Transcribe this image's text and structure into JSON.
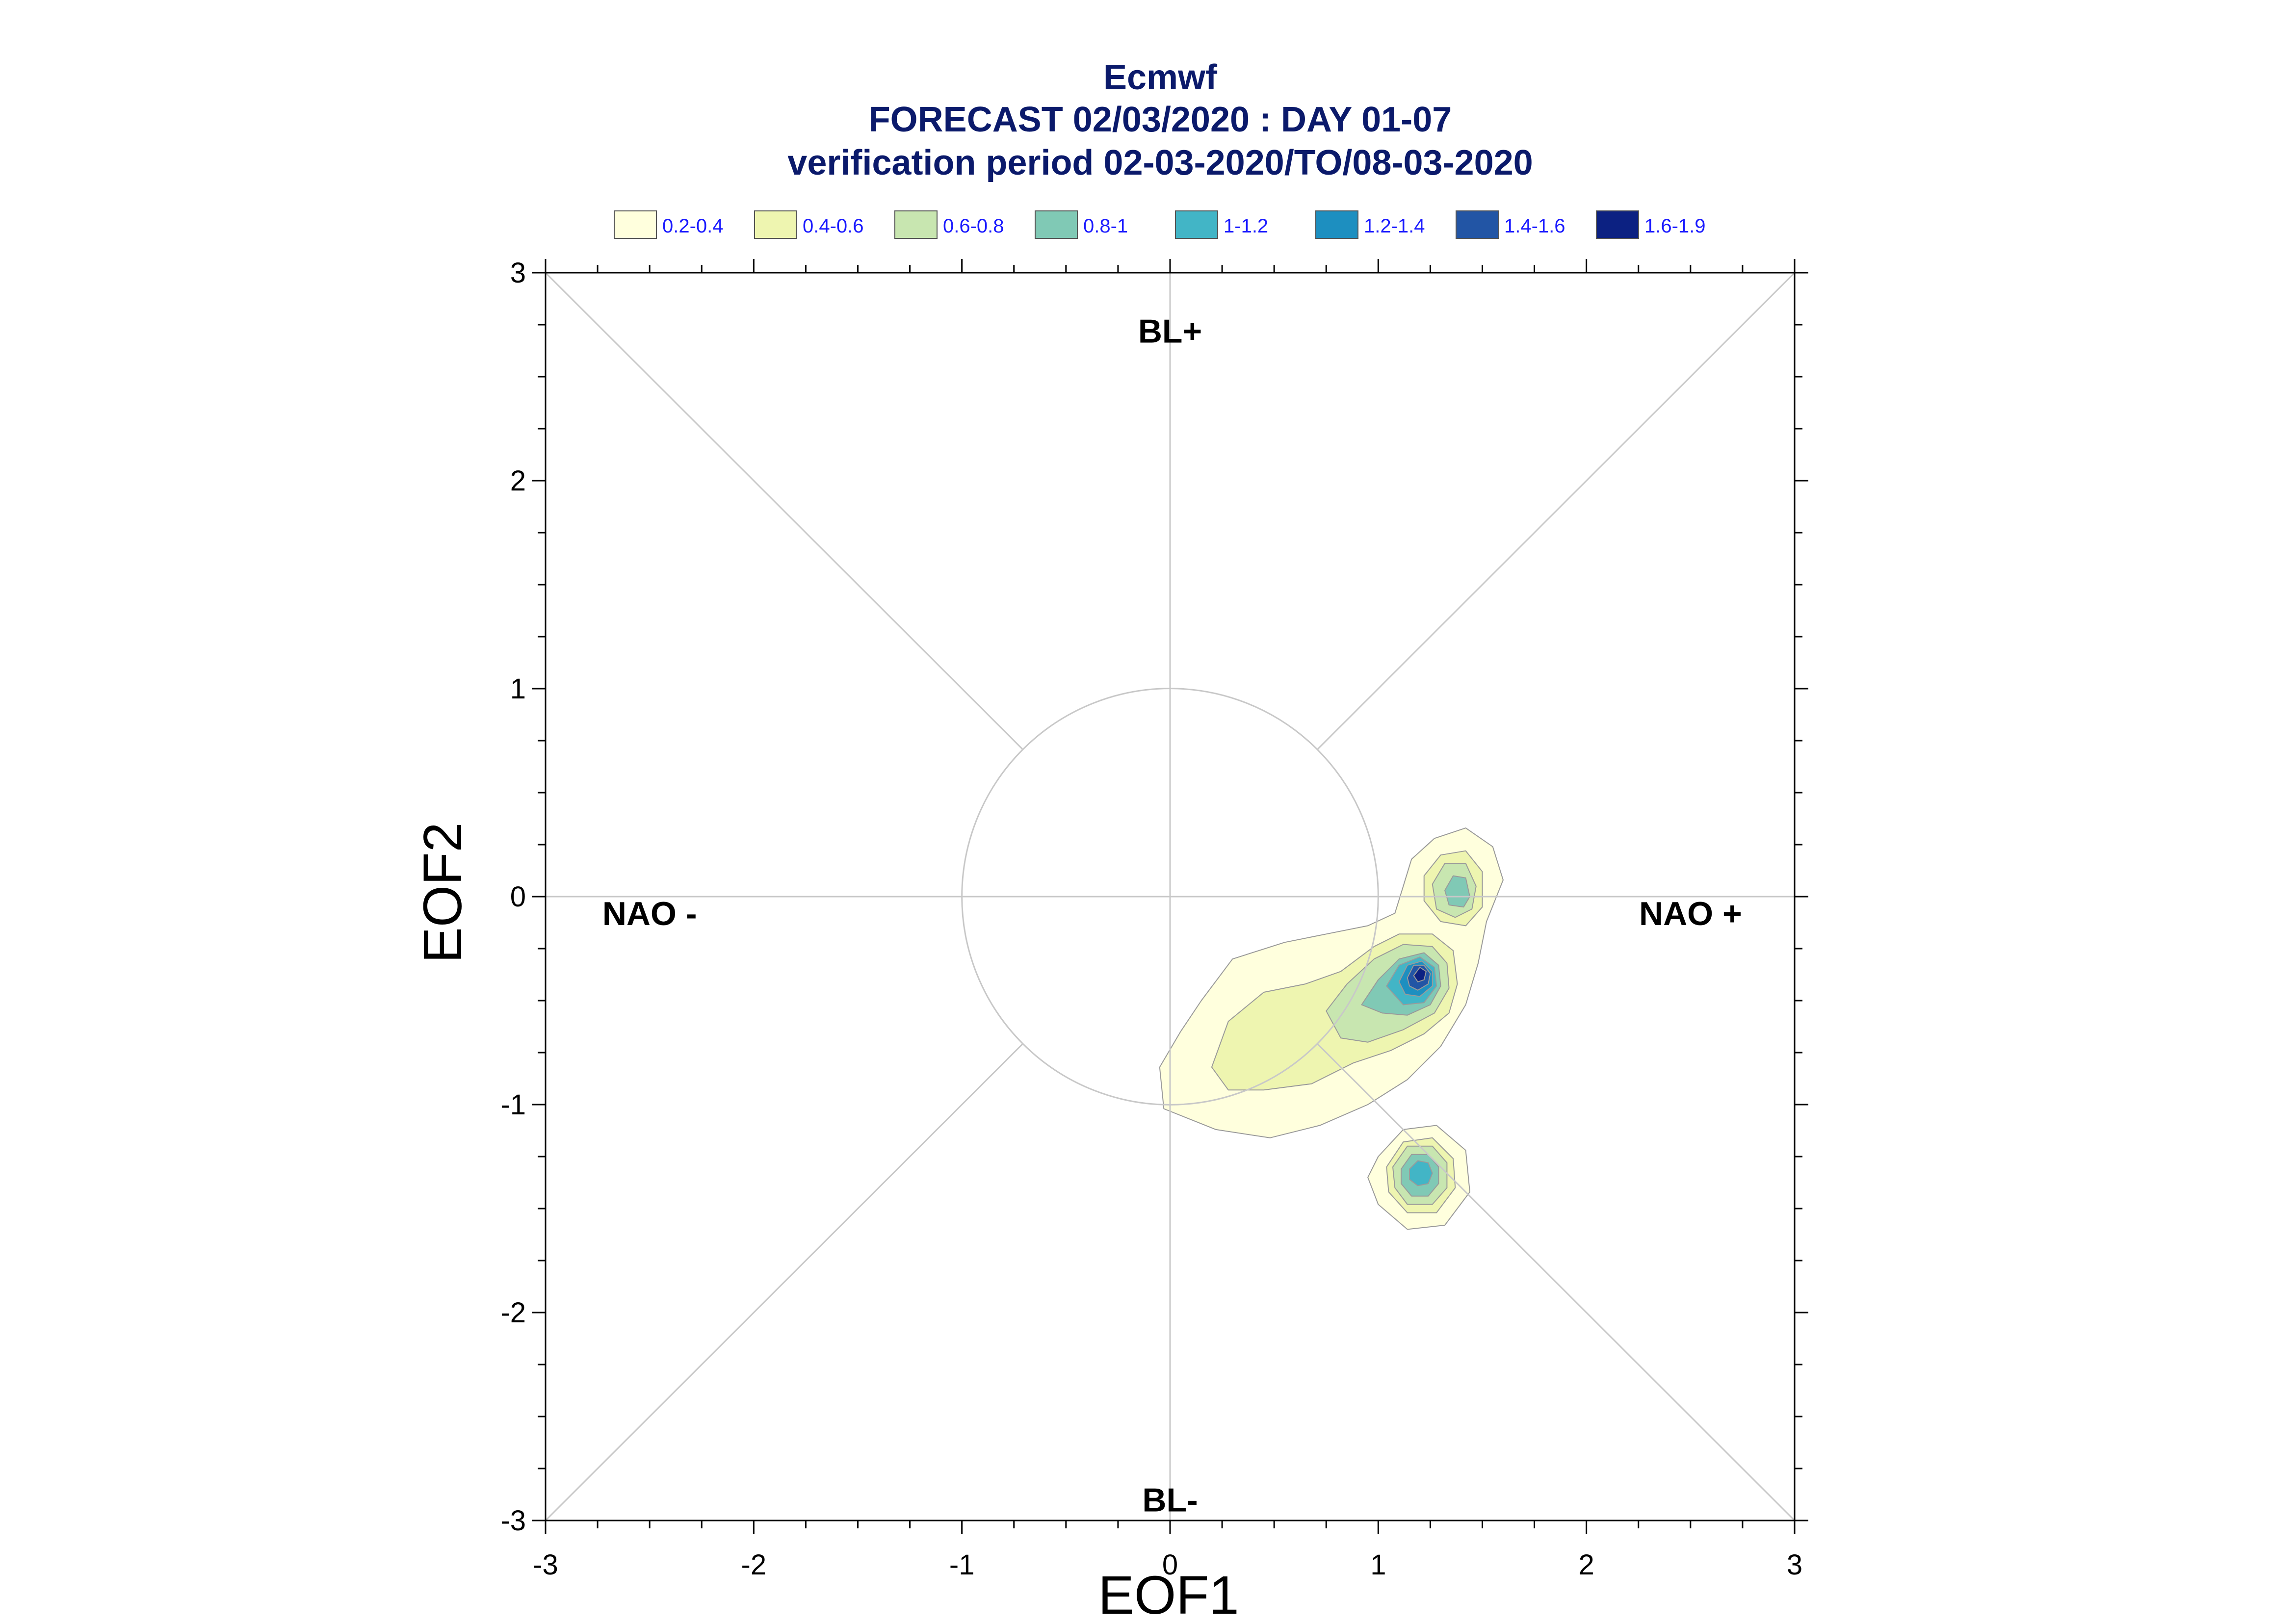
{
  "chart_data": {
    "type": "contour",
    "title_lines": [
      "Ecmwf",
      "FORECAST 02/03/2020 : DAY 01-07",
      "verification period 02-03-2020/TO/08-03-2020"
    ],
    "xlabel": "EOF1",
    "ylabel": "EOF2",
    "xlim": [
      -3,
      3
    ],
    "ylim": [
      -3,
      3
    ],
    "x_ticks": [
      -3,
      -2,
      -1,
      0,
      1,
      2,
      3
    ],
    "y_ticks": [
      -3,
      -2,
      -1,
      0,
      1,
      2,
      3
    ],
    "legend": [
      {
        "label": "0.2-0.4",
        "color": "#ffffdd"
      },
      {
        "label": "0.4-0.6",
        "color": "#eef5b0"
      },
      {
        "label": "0.6-0.8",
        "color": "#c8e6b0"
      },
      {
        "label": "0.8-1",
        "color": "#80c9b5"
      },
      {
        "label": "1-1.2",
        "color": "#42b5c6"
      },
      {
        "label": "1.2-1.4",
        "color": "#1d8fc0"
      },
      {
        "label": "1.4-1.6",
        "color": "#2255a5"
      },
      {
        "label": "1.6-1.9",
        "color": "#0c2182"
      }
    ],
    "region_labels": [
      {
        "text": "BL+",
        "x": 0.0,
        "y": 2.72
      },
      {
        "text": "BL-",
        "x": 0.0,
        "y": -2.9
      },
      {
        "text": "NAO -",
        "x": -2.5,
        "y": -0.08
      },
      {
        "text": "NAO +",
        "x": 2.5,
        "y": -0.08
      }
    ],
    "reference_circle_radius": 1,
    "diagonals": true,
    "density_clusters": [
      {
        "name": "main",
        "peak_x": 1.2,
        "peak_y": -0.37,
        "peak_level": "1.6-1.9"
      },
      {
        "name": "upper-right",
        "peak_x": 1.38,
        "peak_y": 0.02,
        "peak_level": "0.8-1"
      },
      {
        "name": "lower",
        "peak_x": 1.2,
        "peak_y": -1.32,
        "peak_level": "1-1.2"
      },
      {
        "name": "tail",
        "peak_x": 0.45,
        "peak_y": -0.75,
        "peak_level": "0.4-0.6"
      }
    ],
    "contours": [
      {
        "level": 0,
        "polys": [
          [
            [
              0.15,
              -0.5
            ],
            [
              0.3,
              -0.3
            ],
            [
              0.55,
              -0.22
            ],
            [
              0.75,
              -0.18
            ],
            [
              0.95,
              -0.14
            ],
            [
              1.08,
              -0.08
            ],
            [
              1.12,
              0.05
            ],
            [
              1.16,
              0.18
            ],
            [
              1.27,
              0.28
            ],
            [
              1.42,
              0.33
            ],
            [
              1.55,
              0.24
            ],
            [
              1.6,
              0.08
            ],
            [
              1.52,
              -0.12
            ],
            [
              1.48,
              -0.32
            ],
            [
              1.42,
              -0.52
            ],
            [
              1.3,
              -0.72
            ],
            [
              1.14,
              -0.88
            ],
            [
              0.95,
              -1.0
            ],
            [
              0.72,
              -1.1
            ],
            [
              0.48,
              -1.16
            ],
            [
              0.22,
              -1.12
            ],
            [
              -0.03,
              -1.02
            ],
            [
              -0.05,
              -0.82
            ],
            [
              0.05,
              -0.65
            ]
          ],
          [
            [
              1.0,
              -1.25
            ],
            [
              1.12,
              -1.12
            ],
            [
              1.28,
              -1.1
            ],
            [
              1.42,
              -1.22
            ],
            [
              1.44,
              -1.42
            ],
            [
              1.32,
              -1.58
            ],
            [
              1.14,
              -1.6
            ],
            [
              1.0,
              -1.48
            ],
            [
              0.95,
              -1.35
            ]
          ]
        ]
      },
      {
        "level": 1,
        "polys": [
          [
            [
              0.2,
              -0.82
            ],
            [
              0.28,
              -0.6
            ],
            [
              0.45,
              -0.46
            ],
            [
              0.65,
              -0.42
            ],
            [
              0.82,
              -0.36
            ],
            [
              0.98,
              -0.24
            ],
            [
              1.1,
              -0.18
            ],
            [
              1.26,
              -0.18
            ],
            [
              1.36,
              -0.26
            ],
            [
              1.38,
              -0.42
            ],
            [
              1.34,
              -0.56
            ],
            [
              1.22,
              -0.66
            ],
            [
              1.06,
              -0.74
            ],
            [
              0.88,
              -0.8
            ],
            [
              0.68,
              -0.9
            ],
            [
              0.45,
              -0.93
            ],
            [
              0.28,
              -0.93
            ]
          ],
          [
            [
              1.22,
              0.1
            ],
            [
              1.3,
              0.2
            ],
            [
              1.42,
              0.22
            ],
            [
              1.5,
              0.12
            ],
            [
              1.5,
              -0.05
            ],
            [
              1.42,
              -0.14
            ],
            [
              1.3,
              -0.12
            ],
            [
              1.22,
              -0.02
            ]
          ],
          [
            [
              1.04,
              -1.3
            ],
            [
              1.12,
              -1.18
            ],
            [
              1.26,
              -1.16
            ],
            [
              1.36,
              -1.26
            ],
            [
              1.37,
              -1.4
            ],
            [
              1.28,
              -1.52
            ],
            [
              1.14,
              -1.52
            ],
            [
              1.05,
              -1.42
            ]
          ]
        ]
      },
      {
        "level": 2,
        "polys": [
          [
            [
              0.75,
              -0.55
            ],
            [
              0.85,
              -0.42
            ],
            [
              0.98,
              -0.3
            ],
            [
              1.12,
              -0.23
            ],
            [
              1.26,
              -0.24
            ],
            [
              1.33,
              -0.32
            ],
            [
              1.34,
              -0.44
            ],
            [
              1.27,
              -0.56
            ],
            [
              1.12,
              -0.64
            ],
            [
              0.95,
              -0.7
            ],
            [
              0.82,
              -0.68
            ]
          ],
          [
            [
              1.26,
              0.06
            ],
            [
              1.32,
              0.16
            ],
            [
              1.42,
              0.16
            ],
            [
              1.47,
              0.05
            ],
            [
              1.45,
              -0.06
            ],
            [
              1.37,
              -0.1
            ],
            [
              1.28,
              -0.06
            ]
          ],
          [
            [
              1.07,
              -1.3
            ],
            [
              1.14,
              -1.2
            ],
            [
              1.26,
              -1.2
            ],
            [
              1.33,
              -1.28
            ],
            [
              1.33,
              -1.4
            ],
            [
              1.26,
              -1.48
            ],
            [
              1.14,
              -1.48
            ],
            [
              1.08,
              -1.4
            ]
          ]
        ]
      },
      {
        "level": 3,
        "polys": [
          [
            [
              0.92,
              -0.52
            ],
            [
              1.0,
              -0.4
            ],
            [
              1.1,
              -0.3
            ],
            [
              1.22,
              -0.27
            ],
            [
              1.29,
              -0.33
            ],
            [
              1.3,
              -0.43
            ],
            [
              1.25,
              -0.52
            ],
            [
              1.14,
              -0.57
            ],
            [
              1.02,
              -0.56
            ]
          ],
          [
            [
              1.32,
              0.03
            ],
            [
              1.36,
              0.1
            ],
            [
              1.42,
              0.09
            ],
            [
              1.44,
              0.0
            ],
            [
              1.41,
              -0.05
            ],
            [
              1.34,
              -0.04
            ]
          ],
          [
            [
              1.11,
              -1.31
            ],
            [
              1.16,
              -1.24
            ],
            [
              1.24,
              -1.24
            ],
            [
              1.29,
              -1.3
            ],
            [
              1.29,
              -1.38
            ],
            [
              1.24,
              -1.44
            ],
            [
              1.16,
              -1.44
            ],
            [
              1.11,
              -1.38
            ]
          ]
        ]
      },
      {
        "level": 4,
        "polys": [
          [
            [
              1.04,
              -0.43
            ],
            [
              1.1,
              -0.33
            ],
            [
              1.2,
              -0.29
            ],
            [
              1.27,
              -0.34
            ],
            [
              1.28,
              -0.43
            ],
            [
              1.22,
              -0.51
            ],
            [
              1.12,
              -0.52
            ]
          ],
          [
            [
              1.15,
              -1.31
            ],
            [
              1.19,
              -1.27
            ],
            [
              1.24,
              -1.28
            ],
            [
              1.26,
              -1.33
            ],
            [
              1.24,
              -1.38
            ],
            [
              1.19,
              -1.39
            ],
            [
              1.15,
              -1.36
            ]
          ]
        ]
      },
      {
        "level": 5,
        "polys": [
          [
            [
              1.1,
              -0.41
            ],
            [
              1.14,
              -0.33
            ],
            [
              1.21,
              -0.31
            ],
            [
              1.26,
              -0.36
            ],
            [
              1.26,
              -0.43
            ],
            [
              1.2,
              -0.48
            ],
            [
              1.13,
              -0.47
            ]
          ]
        ]
      },
      {
        "level": 6,
        "polys": [
          [
            [
              1.14,
              -0.39
            ],
            [
              1.17,
              -0.33
            ],
            [
              1.22,
              -0.33
            ],
            [
              1.25,
              -0.37
            ],
            [
              1.24,
              -0.42
            ],
            [
              1.19,
              -0.45
            ],
            [
              1.15,
              -0.43
            ]
          ]
        ]
      },
      {
        "level": 7,
        "polys": [
          [
            [
              1.17,
              -0.38
            ],
            [
              1.2,
              -0.34
            ],
            [
              1.23,
              -0.36
            ],
            [
              1.22,
              -0.4
            ],
            [
              1.19,
              -0.41
            ]
          ]
        ]
      }
    ]
  }
}
